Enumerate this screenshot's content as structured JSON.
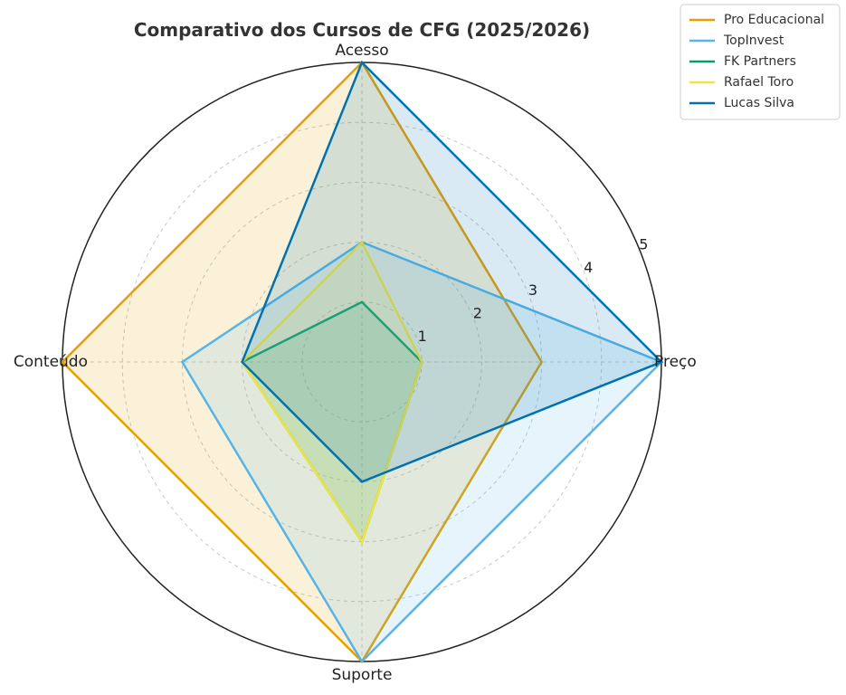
{
  "chart_data": {
    "type": "radar",
    "title": "Comparativo dos Cursos de CFG (2025/2026)",
    "axes": [
      "Preço",
      "Acesso",
      "Conteúdo",
      "Suporte"
    ],
    "rmax": 5,
    "ticks": [
      1,
      2,
      3,
      4,
      5
    ],
    "grid": true,
    "legend_position": "top-right",
    "series": [
      {
        "name": "Pro Educacional",
        "values": [
          3,
          5,
          5,
          5
        ],
        "color": "#E69F00"
      },
      {
        "name": "TopInvest",
        "values": [
          5,
          2,
          3,
          5
        ],
        "color": "#56B4E9"
      },
      {
        "name": "FK Partners",
        "values": [
          1,
          1,
          2,
          3
        ],
        "color": "#009E73"
      },
      {
        "name": "Rafael Toro",
        "values": [
          1,
          2,
          2,
          3
        ],
        "color": "#F0E442"
      },
      {
        "name": "Lucas Silva",
        "values": [
          5,
          5,
          2,
          2
        ],
        "color": "#0072B2"
      }
    ]
  }
}
